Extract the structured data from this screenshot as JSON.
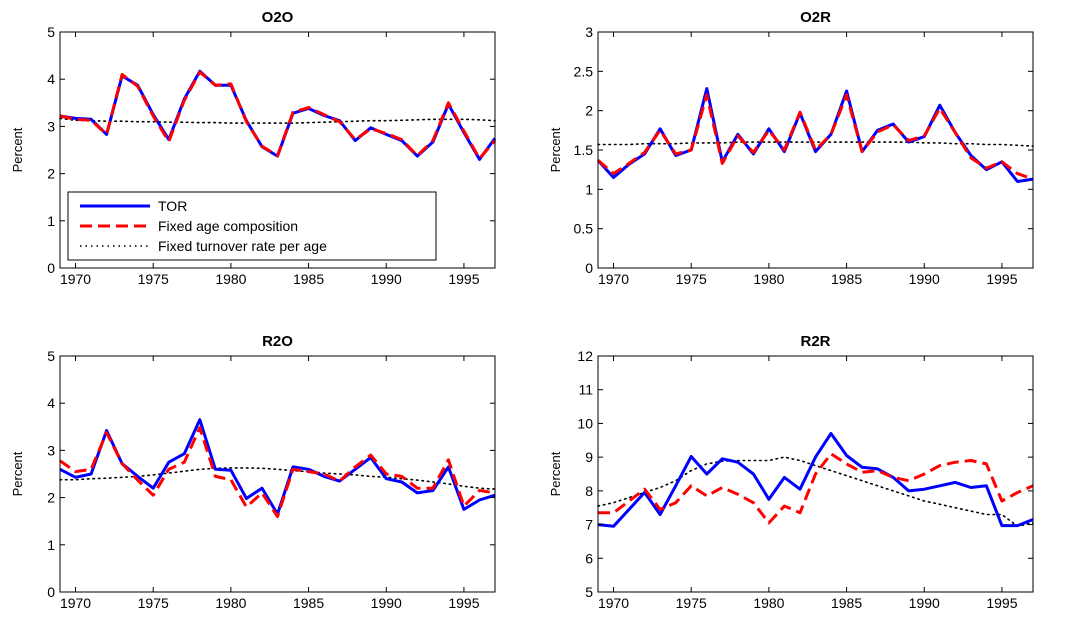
{
  "chart_data": [
    {
      "type": "line",
      "title": "O2O",
      "ylabel": "Percent",
      "xlim": [
        1969,
        1997
      ],
      "ylim": [
        0,
        5
      ],
      "xticks": [
        1970,
        1975,
        1980,
        1985,
        1990,
        1995
      ],
      "yticks": [
        "0",
        "1",
        "2",
        "3",
        "4",
        "5"
      ],
      "x": [
        1969,
        1970,
        1971,
        1972,
        1973,
        1974,
        1975,
        1976,
        1977,
        1978,
        1979,
        1980,
        1981,
        1982,
        1983,
        1984,
        1985,
        1986,
        1987,
        1988,
        1989,
        1990,
        1991,
        1992,
        1993,
        1994,
        1995,
        1996,
        1997
      ],
      "legend": "lower-left",
      "series": [
        {
          "name": "TOR",
          "color": "#0000ff",
          "style": "solid",
          "values": [
            3.22,
            3.17,
            3.15,
            2.83,
            4.07,
            3.87,
            3.25,
            2.72,
            3.58,
            4.17,
            3.87,
            3.87,
            3.12,
            2.57,
            2.37,
            3.28,
            3.38,
            3.23,
            3.12,
            2.7,
            2.97,
            2.83,
            2.7,
            2.37,
            2.67,
            3.47,
            2.87,
            2.3,
            2.75
          ]
        },
        {
          "name": "Fixed age composition",
          "color": "#ff0000",
          "style": "dashed",
          "values": [
            3.22,
            3.15,
            3.13,
            2.83,
            4.1,
            3.85,
            3.22,
            2.68,
            3.55,
            4.15,
            3.87,
            3.9,
            3.1,
            2.58,
            2.38,
            3.3,
            3.4,
            3.25,
            3.1,
            2.72,
            2.95,
            2.85,
            2.72,
            2.38,
            2.7,
            3.5,
            2.9,
            2.32,
            2.7
          ]
        },
        {
          "name": "Fixed turnover rate per age",
          "color": "#000000",
          "style": "dotted",
          "values": [
            3.17,
            3.13,
            3.12,
            3.11,
            3.11,
            3.1,
            3.1,
            3.09,
            3.09,
            3.08,
            3.08,
            3.07,
            3.07,
            3.07,
            3.07,
            3.07,
            3.08,
            3.09,
            3.1,
            3.11,
            3.12,
            3.12,
            3.13,
            3.14,
            3.15,
            3.15,
            3.15,
            3.14,
            3.12
          ]
        }
      ]
    },
    {
      "type": "line",
      "title": "O2R",
      "ylabel": "Percent",
      "xlim": [
        1969,
        1997
      ],
      "ylim": [
        0,
        3
      ],
      "xticks": [
        1970,
        1975,
        1980,
        1985,
        1990,
        1995
      ],
      "yticks": [
        "0",
        "0.5",
        "1",
        "1.5",
        "2",
        "2.5",
        "3"
      ],
      "x": [
        1969,
        1970,
        1971,
        1972,
        1973,
        1974,
        1975,
        1976,
        1977,
        1978,
        1979,
        1980,
        1981,
        1982,
        1983,
        1984,
        1985,
        1986,
        1987,
        1988,
        1989,
        1990,
        1991,
        1992,
        1993,
        1994,
        1995,
        1996,
        1997
      ],
      "series": [
        {
          "name": "TOR",
          "color": "#0000ff",
          "style": "solid",
          "values": [
            1.37,
            1.15,
            1.32,
            1.45,
            1.77,
            1.43,
            1.5,
            2.28,
            1.35,
            1.7,
            1.45,
            1.77,
            1.48,
            1.97,
            1.48,
            1.7,
            2.25,
            1.48,
            1.75,
            1.83,
            1.6,
            1.67,
            2.07,
            1.72,
            1.43,
            1.25,
            1.35,
            1.1,
            1.13
          ]
        },
        {
          "name": "Fixed age composition",
          "color": "#ff0000",
          "style": "dashed",
          "values": [
            1.37,
            1.2,
            1.33,
            1.47,
            1.75,
            1.45,
            1.5,
            2.2,
            1.33,
            1.68,
            1.47,
            1.75,
            1.5,
            1.98,
            1.5,
            1.7,
            2.2,
            1.48,
            1.73,
            1.82,
            1.62,
            1.68,
            2.03,
            1.72,
            1.4,
            1.27,
            1.35,
            1.2,
            1.13
          ]
        },
        {
          "name": "Fixed turnover rate per age",
          "color": "#000000",
          "style": "dotted",
          "values": [
            1.57,
            1.57,
            1.57,
            1.58,
            1.58,
            1.58,
            1.59,
            1.59,
            1.59,
            1.6,
            1.6,
            1.6,
            1.6,
            1.6,
            1.6,
            1.6,
            1.6,
            1.6,
            1.6,
            1.6,
            1.6,
            1.59,
            1.59,
            1.58,
            1.58,
            1.57,
            1.57,
            1.56,
            1.55
          ]
        }
      ]
    },
    {
      "type": "line",
      "title": "R2O",
      "ylabel": "Percent",
      "xlim": [
        1969,
        1997
      ],
      "ylim": [
        0,
        5
      ],
      "xticks": [
        1970,
        1975,
        1980,
        1985,
        1990,
        1995
      ],
      "yticks": [
        "0",
        "1",
        "2",
        "3",
        "4",
        "5"
      ],
      "x": [
        1969,
        1970,
        1971,
        1972,
        1973,
        1974,
        1975,
        1976,
        1977,
        1978,
        1979,
        1980,
        1981,
        1982,
        1983,
        1984,
        1985,
        1986,
        1987,
        1988,
        1989,
        1990,
        1991,
        1992,
        1993,
        1994,
        1995,
        1996,
        1997
      ],
      "series": [
        {
          "name": "TOR",
          "color": "#0000ff",
          "style": "solid",
          "values": [
            2.6,
            2.43,
            2.5,
            3.42,
            2.72,
            2.45,
            2.2,
            2.75,
            2.93,
            3.65,
            2.6,
            2.58,
            1.98,
            2.2,
            1.65,
            2.65,
            2.6,
            2.45,
            2.35,
            2.6,
            2.85,
            2.4,
            2.33,
            2.1,
            2.15,
            2.65,
            1.75,
            1.95,
            2.05
          ]
        },
        {
          "name": "Fixed age composition",
          "color": "#ff0000",
          "style": "dashed",
          "values": [
            2.78,
            2.55,
            2.6,
            3.38,
            2.72,
            2.37,
            2.05,
            2.6,
            2.75,
            3.48,
            2.45,
            2.38,
            1.8,
            2.1,
            1.6,
            2.6,
            2.55,
            2.5,
            2.35,
            2.65,
            2.9,
            2.5,
            2.45,
            2.2,
            2.2,
            2.8,
            1.82,
            2.15,
            2.1
          ]
        },
        {
          "name": "Fixed turnover rate per age",
          "color": "#000000",
          "style": "dotted",
          "values": [
            2.38,
            2.38,
            2.4,
            2.41,
            2.43,
            2.45,
            2.48,
            2.52,
            2.56,
            2.6,
            2.62,
            2.63,
            2.63,
            2.62,
            2.6,
            2.57,
            2.55,
            2.52,
            2.5,
            2.48,
            2.45,
            2.43,
            2.4,
            2.37,
            2.33,
            2.29,
            2.24,
            2.2,
            2.18
          ]
        }
      ]
    },
    {
      "type": "line",
      "title": "R2R",
      "ylabel": "Percent",
      "xlim": [
        1969,
        1997
      ],
      "ylim": [
        5,
        12
      ],
      "xticks": [
        1970,
        1975,
        1980,
        1985,
        1990,
        1995
      ],
      "yticks": [
        "5",
        "6",
        "7",
        "8",
        "9",
        "10",
        "11",
        "12"
      ],
      "x": [
        1969,
        1970,
        1971,
        1972,
        1973,
        1974,
        1975,
        1976,
        1977,
        1978,
        1979,
        1980,
        1981,
        1982,
        1983,
        1984,
        1985,
        1986,
        1987,
        1988,
        1989,
        1990,
        1991,
        1992,
        1993,
        1994,
        1995,
        1996,
        1997
      ],
      "series": [
        {
          "name": "TOR",
          "color": "#0000ff",
          "style": "solid",
          "values": [
            7.0,
            6.95,
            7.45,
            7.95,
            7.3,
            8.15,
            9.02,
            8.5,
            8.95,
            8.85,
            8.5,
            7.75,
            8.4,
            8.05,
            9.0,
            9.7,
            9.05,
            8.7,
            8.65,
            8.4,
            8.0,
            8.05,
            8.15,
            8.25,
            8.1,
            8.15,
            6.97,
            6.97,
            7.15
          ]
        },
        {
          "name": "Fixed age composition",
          "color": "#ff0000",
          "style": "dashed",
          "values": [
            7.35,
            7.35,
            7.7,
            8.05,
            7.45,
            7.65,
            8.15,
            7.85,
            8.1,
            7.9,
            7.65,
            7.05,
            7.55,
            7.35,
            8.5,
            9.1,
            8.8,
            8.55,
            8.6,
            8.4,
            8.3,
            8.5,
            8.75,
            8.85,
            8.9,
            8.8,
            7.7,
            7.95,
            8.15
          ]
        },
        {
          "name": "Fixed turnover rate per age",
          "color": "#000000",
          "style": "dotted",
          "values": [
            7.55,
            7.65,
            7.8,
            7.95,
            8.1,
            8.3,
            8.6,
            8.8,
            8.88,
            8.9,
            8.9,
            8.9,
            9.0,
            8.9,
            8.75,
            8.6,
            8.45,
            8.3,
            8.15,
            8.0,
            7.85,
            7.7,
            7.6,
            7.5,
            7.4,
            7.3,
            7.3,
            6.95,
            7.05
          ]
        }
      ]
    }
  ]
}
